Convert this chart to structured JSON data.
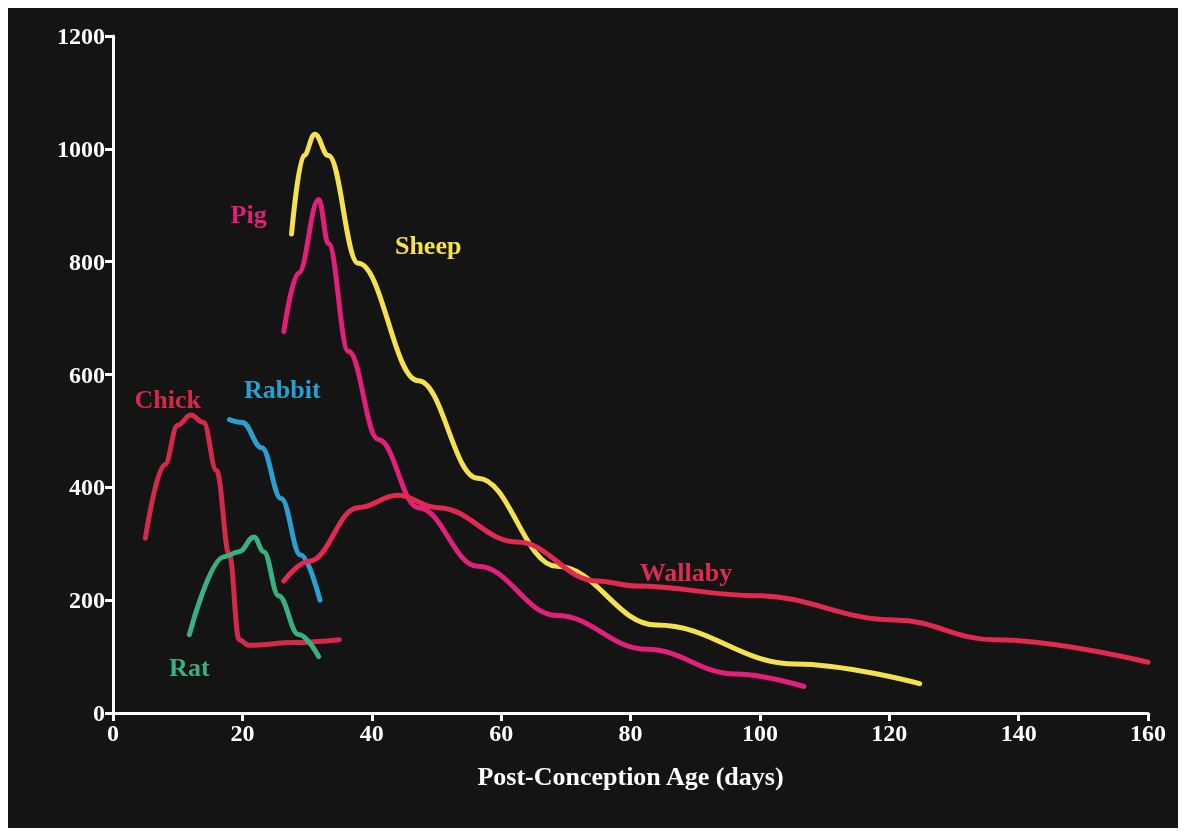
{
  "chart_data": {
    "type": "line",
    "xlabel": "Post-Conception Age (days)",
    "xlim": [
      0,
      160
    ],
    "xticks": [
      0,
      20,
      40,
      60,
      80,
      100,
      120,
      140,
      160
    ],
    "ylim": [
      0,
      1200
    ],
    "yticks": [
      0,
      200,
      400,
      600,
      800,
      1000,
      1200
    ],
    "grid": false,
    "legend": false,
    "marker": "none",
    "line_style": "solid",
    "series": [
      {
        "name": "Chick",
        "color": "#d42a4a",
        "x": [
          5,
          8,
          10,
          12,
          14,
          16,
          18,
          19.5,
          21,
          28,
          35
        ],
        "values": [
          310,
          440,
          510,
          528,
          515,
          430,
          280,
          130,
          120,
          125,
          130
        ]
      },
      {
        "name": "Rabbit",
        "color": "#2a9fd0",
        "x": [
          18,
          20,
          23,
          26,
          29,
          32
        ],
        "values": [
          520,
          515,
          470,
          380,
          280,
          200
        ]
      },
      {
        "name": "Rat",
        "color": "#3aaf80",
        "x": [
          11.8,
          17.2,
          19.5,
          21.8,
          23.3,
          25.6,
          28.7,
          31.8
        ],
        "values": [
          139,
          277,
          286,
          312,
          286,
          208,
          139,
          100
        ]
      },
      {
        "name": "Pig",
        "color": "#e0207a",
        "x": [
          26.4,
          28.7,
          31.8,
          33.3,
          36.4,
          41,
          47.2,
          56.4,
          68.6,
          82.5,
          96.3,
          106.8
        ],
        "values": [
          676,
          780,
          910,
          832,
          641,
          485,
          364,
          260,
          173,
          113,
          69,
          47
        ]
      },
      {
        "name": "Sheep",
        "color": "#f5e050",
        "x": [
          27.6,
          29.5,
          31.2,
          33.3,
          37.9,
          47.2,
          56.4,
          68.6,
          84,
          105.5,
          124.7
        ],
        "values": [
          849,
          988,
          1026,
          988,
          797,
          589,
          416,
          260,
          156,
          87,
          52
        ]
      },
      {
        "name": "Wallaby",
        "color": "#e02a50",
        "x": [
          26.4,
          30.3,
          37.9,
          44,
          50.2,
          62.5,
          74.8,
          80.9,
          99.4,
          120.9,
          136.2,
          160
        ],
        "values": [
          234,
          269,
          364,
          386,
          364,
          303,
          234,
          225,
          208,
          165,
          130,
          90
        ]
      }
    ]
  }
}
